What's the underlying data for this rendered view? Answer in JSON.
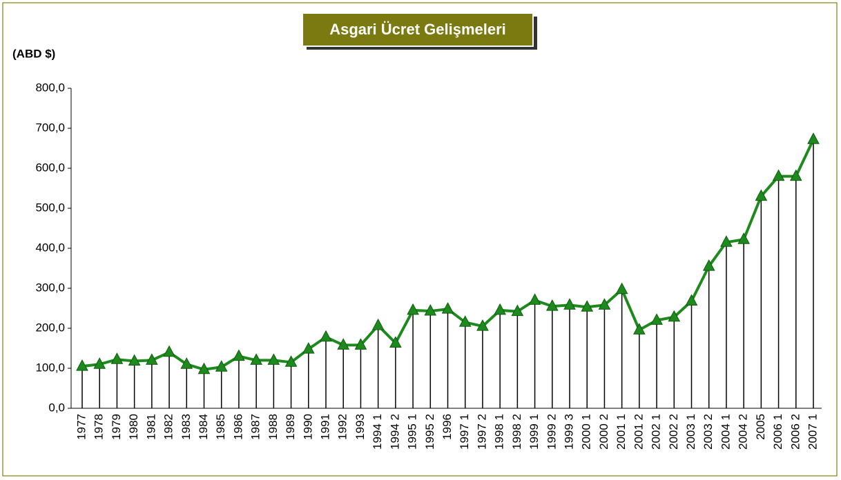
{
  "chart_data": {
    "type": "line",
    "title": "Asgari Ücret Gelişmeleri",
    "y_label": "(ABD $)",
    "categories": [
      "1977",
      "1978",
      "1979",
      "1980",
      "1981",
      "1982",
      "1983",
      "1984",
      "1985",
      "1986",
      "1987",
      "1988",
      "1989",
      "1990",
      "1991",
      "1992",
      "1993",
      "1994 1",
      "1994 2",
      "1995 1",
      "1995 2",
      "1996",
      "1997 1",
      "1997 2",
      "1998 1",
      "1998 2",
      "1999 1",
      "1999 2",
      "1999 3",
      "2000 1",
      "2000 2",
      "2001 1",
      "2001 2",
      "2002 1",
      "2002 2",
      "2003 1",
      "2003 2",
      "2004 1",
      "2004 2",
      "2005",
      "2006 1",
      "2006 2",
      "2007 1"
    ],
    "values": [
      105,
      110,
      122,
      118,
      120,
      140,
      110,
      97,
      103,
      130,
      120,
      120,
      115,
      148,
      178,
      158,
      158,
      207,
      163,
      245,
      243,
      248,
      215,
      205,
      245,
      242,
      270,
      255,
      258,
      253,
      258,
      297,
      196,
      220,
      228,
      268,
      355,
      415,
      422,
      530,
      580,
      580,
      672
    ],
    "color": "#1e8a1e",
    "drop_lines": true,
    "ylim": [
      0,
      800
    ],
    "yticks": [
      {
        "value": 0,
        "label": "0,0"
      },
      {
        "value": 100,
        "label": "100,0"
      },
      {
        "value": 200,
        "label": "200,0"
      },
      {
        "value": 300,
        "label": "300,0"
      },
      {
        "value": 400,
        "label": "400,0"
      },
      {
        "value": 500,
        "label": "500,0"
      },
      {
        "value": 600,
        "label": "600,0"
      },
      {
        "value": 700,
        "label": "700,0"
      },
      {
        "value": 800,
        "label": "800,0"
      }
    ]
  }
}
